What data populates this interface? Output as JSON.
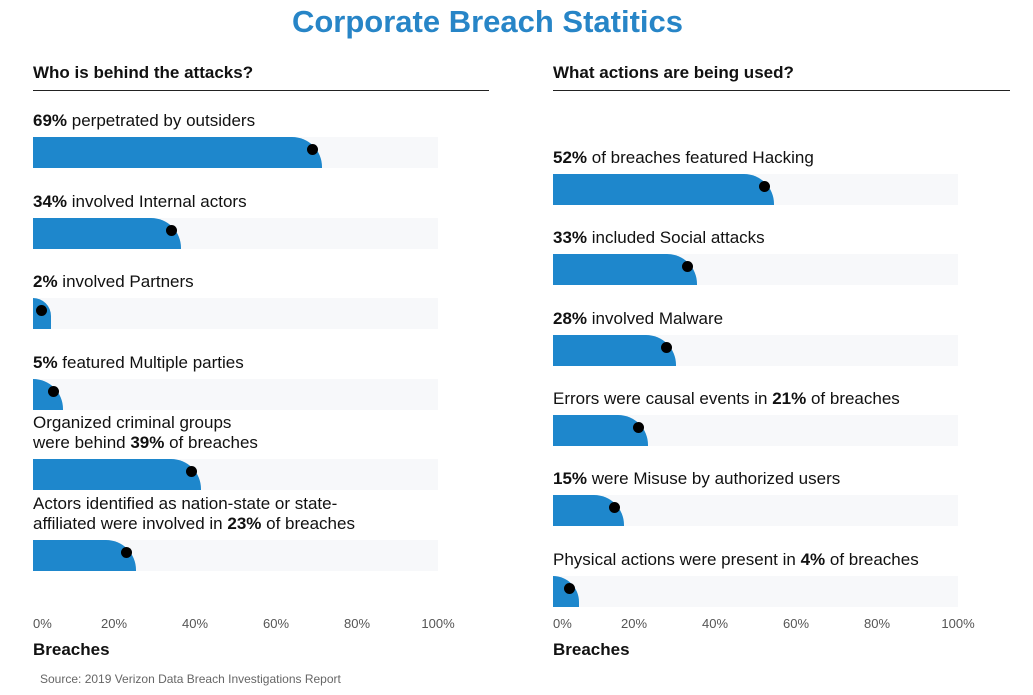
{
  "title": "Corporate Breach Statitics",
  "source": "Source: 2019 Verizon Data Breach Investigations Report",
  "colors": {
    "title": "#2785c7",
    "bar": "#1e87cc",
    "track": "#f7f8fa",
    "dot": "#000000"
  },
  "chart_data": [
    {
      "type": "bar",
      "orientation": "horizontal",
      "title": "Who is behind the attacks?",
      "xlabel": "Breaches",
      "xlim": [
        0,
        100
      ],
      "x_ticks": [
        "0%",
        "20%",
        "40%",
        "60%",
        "80%",
        "100%"
      ],
      "unit": "%",
      "grid": false,
      "items": [
        {
          "value": 69,
          "pre": "",
          "pct": "69%",
          "post": " perpetrated by outsiders"
        },
        {
          "value": 34,
          "pre": "",
          "pct": "34%",
          "post": " involved Internal actors"
        },
        {
          "value": 2,
          "pre": "",
          "pct": "2%",
          "post": " involved Partners"
        },
        {
          "value": 5,
          "pre": "",
          "pct": "5%",
          "post": " featured Multiple parties"
        },
        {
          "value": 39,
          "line1": "Organized criminal groups",
          "pre": "were behind ",
          "pct": "39%",
          "post": " of breaches"
        },
        {
          "value": 23,
          "line1": "Actors identified as nation-state or state-",
          "pre": "affiliated were involved in ",
          "pct": "23%",
          "post": " of breaches"
        }
      ]
    },
    {
      "type": "bar",
      "orientation": "horizontal",
      "title": "What actions are being used?",
      "xlabel": "Breaches",
      "xlim": [
        0,
        100
      ],
      "x_ticks": [
        "0%",
        "20%",
        "40%",
        "60%",
        "80%",
        "100%"
      ],
      "unit": "%",
      "grid": false,
      "items": [
        {
          "value": 52,
          "pre": "",
          "pct": "52%",
          "post": " of breaches featured Hacking"
        },
        {
          "value": 33,
          "pre": "",
          "pct": "33%",
          "post": " included Social attacks"
        },
        {
          "value": 28,
          "pre": "",
          "pct": "28%",
          "post": " involved Malware"
        },
        {
          "value": 21,
          "pre": "Errors were causal events in ",
          "pct": "21%",
          "post": " of breaches"
        },
        {
          "value": 15,
          "pre": "",
          "pct": "15%",
          "post": " were Misuse by authorized users"
        },
        {
          "value": 4,
          "pre": "Physical actions were present in ",
          "pct": "4%",
          "post": " of breaches"
        }
      ]
    }
  ]
}
